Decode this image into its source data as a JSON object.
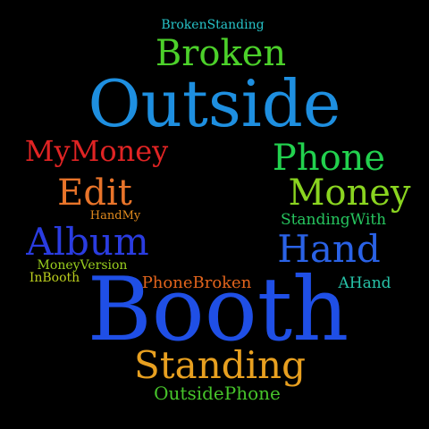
{
  "words": [
    {
      "text": "BrokenStanding",
      "color": "#27C3C8"
    },
    {
      "text": "Broken",
      "color": "#4CD02A"
    },
    {
      "text": "Outside",
      "color": "#1E8FE0"
    },
    {
      "text": "MyMoney",
      "color": "#E02424"
    },
    {
      "text": "Phone",
      "color": "#22D14E"
    },
    {
      "text": "Edit",
      "color": "#E8742A"
    },
    {
      "text": "Money",
      "color": "#8AD420"
    },
    {
      "text": "HandMy",
      "color": "#E08A1E"
    },
    {
      "text": "StandingWith",
      "color": "#26C45E"
    },
    {
      "text": "Album",
      "color": "#2A3CE0"
    },
    {
      "text": "Hand",
      "color": "#2A62E6"
    },
    {
      "text": "MoneyVersion",
      "color": "#9ACF1E"
    },
    {
      "text": "InBooth",
      "color": "#BCCF1E"
    },
    {
      "text": "PhoneBroken",
      "color": "#E2641C"
    },
    {
      "text": "AHand",
      "color": "#27C3A8"
    },
    {
      "text": "Booth",
      "color": "#1F4FE6"
    },
    {
      "text": "Standing",
      "color": "#E8A020"
    },
    {
      "text": "OutsidePhone",
      "color": "#46C42A"
    }
  ]
}
